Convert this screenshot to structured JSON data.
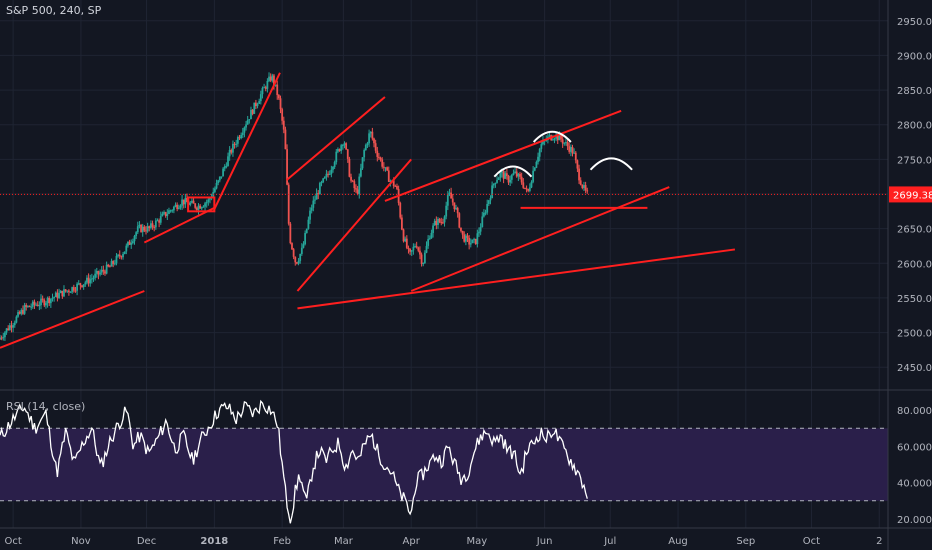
{
  "header": {
    "title": "S&P 500, 240, SP"
  },
  "rsi": {
    "label": "RSI (14, close)"
  },
  "colors": {
    "background": "#131722",
    "grid": "#1f2433",
    "axis_text": "#b2b5be",
    "up": "#26a69a",
    "down": "#ef5350",
    "trendline": "#ff1f1f",
    "annotation": "#ffffff",
    "last_price_bg": "#ff1f1f",
    "rsi_line": "#ffffff",
    "rsi_band": "#2a1f4a",
    "rsi_dashed": "#b2b5be"
  },
  "chart_data": [
    {
      "type": "candlestick",
      "title": "S&P 500, 240, SP",
      "ylim": [
        2420,
        2980
      ],
      "y_ticks": [
        "2450.00",
        "2500.00",
        "2550.00",
        "2600.00",
        "2650.00",
        "2700.00",
        "2750.00",
        "2800.00",
        "2850.00",
        "2900.00",
        "2950.00"
      ],
      "last_price": "2699.38",
      "x_labels": [
        "Oct",
        "Nov",
        "Dec",
        "2018",
        "Feb",
        "Mar",
        "Apr",
        "May",
        "Jun",
        "Jul",
        "Aug",
        "Sep",
        "Oct",
        "2"
      ],
      "x_label_days": [
        0,
        31,
        61,
        92,
        123,
        151,
        182,
        212,
        243,
        273,
        304,
        335,
        365,
        396
      ],
      "x_range_days": [
        -6,
        400
      ],
      "price_path": [
        [
          -6,
          2490
        ],
        [
          6,
          2535
        ],
        [
          15,
          2545
        ],
        [
          25,
          2560
        ],
        [
          35,
          2575
        ],
        [
          40,
          2585
        ],
        [
          45,
          2595
        ],
        [
          52,
          2620
        ],
        [
          58,
          2650
        ],
        [
          63,
          2650
        ],
        [
          70,
          2670
        ],
        [
          78,
          2690
        ],
        [
          85,
          2682
        ],
        [
          90,
          2690
        ],
        [
          95,
          2720
        ],
        [
          100,
          2760
        ],
        [
          105,
          2790
        ],
        [
          110,
          2820
        ],
        [
          116,
          2855
        ],
        [
          119,
          2870
        ],
        [
          122,
          2840
        ],
        [
          125,
          2780
        ],
        [
          127,
          2640
        ],
        [
          130,
          2600
        ],
        [
          133,
          2620
        ],
        [
          137,
          2680
        ],
        [
          141,
          2710
        ],
        [
          145,
          2730
        ],
        [
          149,
          2760
        ],
        [
          152,
          2780
        ],
        [
          155,
          2720
        ],
        [
          158,
          2700
        ],
        [
          161,
          2760
        ],
        [
          164,
          2790
        ],
        [
          167,
          2760
        ],
        [
          170,
          2740
        ],
        [
          173,
          2720
        ],
        [
          176,
          2710
        ],
        [
          179,
          2640
        ],
        [
          182,
          2610
        ],
        [
          185,
          2630
        ],
        [
          188,
          2600
        ],
        [
          191,
          2640
        ],
        [
          194,
          2660
        ],
        [
          197,
          2660
        ],
        [
          200,
          2700
        ],
        [
          203,
          2680
        ],
        [
          206,
          2640
        ],
        [
          209,
          2630
        ],
        [
          212,
          2630
        ],
        [
          215,
          2660
        ],
        [
          218,
          2690
        ],
        [
          221,
          2720
        ],
        [
          224,
          2730
        ],
        [
          227,
          2720
        ],
        [
          230,
          2730
        ],
        [
          233,
          2720
        ],
        [
          236,
          2700
        ],
        [
          239,
          2740
        ],
        [
          242,
          2770
        ],
        [
          245,
          2780
        ],
        [
          248,
          2785
        ],
        [
          251,
          2780
        ],
        [
          254,
          2770
        ],
        [
          257,
          2760
        ],
        [
          259,
          2730
        ],
        [
          261,
          2712
        ],
        [
          263,
          2699
        ]
      ],
      "trendlines": [
        [
          [
            -6,
            2478
          ],
          [
            60,
            2560
          ]
        ],
        [
          [
            60,
            2630
          ],
          [
            92,
            2680
          ]
        ],
        [
          [
            92,
            2678
          ],
          [
            122,
            2875
          ]
        ],
        [
          [
            125,
            2720
          ],
          [
            170,
            2840
          ]
        ],
        [
          [
            130,
            2560
          ],
          [
            182,
            2750
          ]
        ],
        [
          [
            130,
            2535
          ],
          [
            330,
            2620
          ]
        ],
        [
          [
            170,
            2690
          ],
          [
            278,
            2820
          ]
        ],
        [
          [
            182,
            2560
          ],
          [
            300,
            2710
          ]
        ],
        [
          [
            232,
            2680
          ],
          [
            290,
            2680
          ]
        ]
      ],
      "box": [
        [
          80,
          2675
        ],
        [
          92,
          2695
        ]
      ],
      "arcs": [
        [
          [
            220,
            2725
          ],
          [
            237,
            2725
          ]
        ],
        [
          [
            238,
            2775
          ],
          [
            255,
            2775
          ]
        ],
        [
          [
            264,
            2735
          ],
          [
            283,
            2735
          ]
        ]
      ]
    },
    {
      "type": "line",
      "title": "RSI (14, close)",
      "ylim": [
        15,
        90
      ],
      "y_ticks": [
        "20.0000",
        "40.0000",
        "60.0000",
        "80.0000"
      ],
      "bands": [
        30,
        70
      ],
      "rsi_path": [
        [
          -6,
          65
        ],
        [
          0,
          75
        ],
        [
          5,
          82
        ],
        [
          10,
          70
        ],
        [
          15,
          78
        ],
        [
          20,
          45
        ],
        [
          24,
          68
        ],
        [
          28,
          50
        ],
        [
          32,
          62
        ],
        [
          36,
          70
        ],
        [
          40,
          48
        ],
        [
          44,
          62
        ],
        [
          48,
          72
        ],
        [
          52,
          80
        ],
        [
          55,
          60
        ],
        [
          58,
          66
        ],
        [
          62,
          56
        ],
        [
          66,
          64
        ],
        [
          70,
          74
        ],
        [
          74,
          58
        ],
        [
          78,
          66
        ],
        [
          82,
          52
        ],
        [
          86,
          64
        ],
        [
          90,
          72
        ],
        [
          94,
          80
        ],
        [
          98,
          82
        ],
        [
          102,
          75
        ],
        [
          106,
          82
        ],
        [
          110,
          78
        ],
        [
          114,
          84
        ],
        [
          118,
          80
        ],
        [
          121,
          72
        ],
        [
          123,
          50
        ],
        [
          125,
          30
        ],
        [
          127,
          20
        ],
        [
          129,
          35
        ],
        [
          131,
          45
        ],
        [
          134,
          28
        ],
        [
          137,
          48
        ],
        [
          140,
          58
        ],
        [
          143,
          52
        ],
        [
          146,
          58
        ],
        [
          149,
          62
        ],
        [
          152,
          48
        ],
        [
          155,
          58
        ],
        [
          158,
          52
        ],
        [
          161,
          62
        ],
        [
          164,
          66
        ],
        [
          167,
          56
        ],
        [
          170,
          50
        ],
        [
          173,
          46
        ],
        [
          176,
          36
        ],
        [
          179,
          30
        ],
        [
          182,
          22
        ],
        [
          184,
          40
        ],
        [
          187,
          44
        ],
        [
          190,
          50
        ],
        [
          193,
          55
        ],
        [
          196,
          52
        ],
        [
          199,
          60
        ],
        [
          202,
          50
        ],
        [
          205,
          42
        ],
        [
          208,
          46
        ],
        [
          211,
          58
        ],
        [
          214,
          66
        ],
        [
          217,
          68
        ],
        [
          220,
          62
        ],
        [
          223,
          66
        ],
        [
          226,
          58
        ],
        [
          229,
          56
        ],
        [
          232,
          44
        ],
        [
          235,
          58
        ],
        [
          238,
          62
        ],
        [
          241,
          68
        ],
        [
          244,
          64
        ],
        [
          247,
          70
        ],
        [
          250,
          62
        ],
        [
          253,
          56
        ],
        [
          256,
          50
        ],
        [
          259,
          44
        ],
        [
          261,
          38
        ],
        [
          263,
          32
        ]
      ]
    }
  ]
}
